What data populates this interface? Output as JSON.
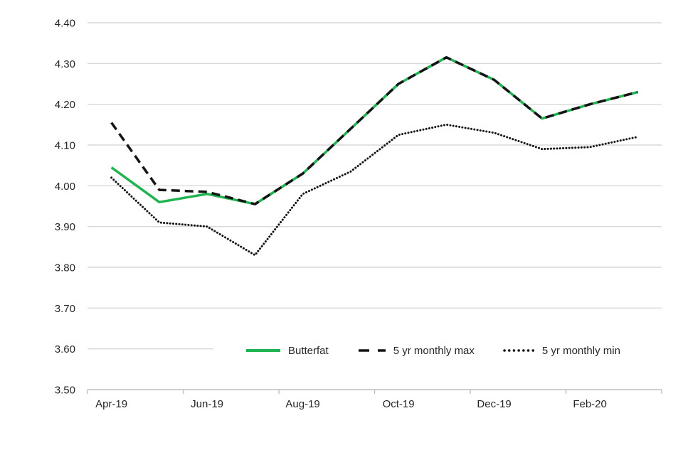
{
  "chart_data": {
    "type": "line",
    "categories": [
      "Apr-19",
      "May-19",
      "Jun-19",
      "Jul-19",
      "Aug-19",
      "Sep-19",
      "Oct-19",
      "Nov-19",
      "Dec-19",
      "Jan-20",
      "Feb-20",
      "Mar-20"
    ],
    "x_tick_labels": [
      "Apr-19",
      "Jun-19",
      "Aug-19",
      "Oct-19",
      "Dec-19",
      "Feb-20"
    ],
    "series": [
      {
        "name": "Butterfat",
        "color": "#1fb450",
        "style": "solid",
        "values": [
          4.045,
          3.96,
          3.98,
          3.955,
          4.03,
          4.14,
          4.25,
          4.315,
          4.26,
          4.165,
          4.2,
          4.23
        ]
      },
      {
        "name": "5 yr monthly max",
        "color": "#141414",
        "style": "dashed",
        "values": [
          4.155,
          3.99,
          3.985,
          3.955,
          4.03,
          4.14,
          4.25,
          4.315,
          4.26,
          4.165,
          4.2,
          4.23
        ]
      },
      {
        "name": "5 yr monthly min",
        "color": "#141414",
        "style": "dotted",
        "values": [
          4.02,
          3.91,
          3.9,
          3.83,
          3.98,
          4.035,
          4.125,
          4.15,
          4.13,
          4.09,
          4.095,
          4.12
        ]
      }
    ],
    "y_axis": {
      "min": 3.5,
      "max": 4.4,
      "step": 0.1,
      "tick_labels": [
        "3.50",
        "3.60",
        "3.70",
        "3.80",
        "3.90",
        "4.00",
        "4.10",
        "4.20",
        "4.30",
        "4.40"
      ]
    },
    "grid": true,
    "legend_position": "bottom",
    "title": "",
    "xlabel": "",
    "ylabel": ""
  },
  "colors": {
    "background": "#ffffff",
    "gridline": "#d9d9d9",
    "axis_line": "#bfbfbf",
    "text": "#262626",
    "butterfat_green": "#1fb450",
    "line_black": "#141414"
  }
}
